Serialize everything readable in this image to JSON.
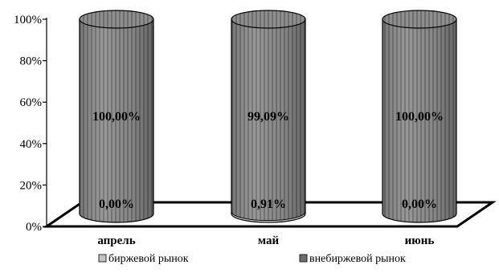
{
  "chart_data": {
    "type": "bar",
    "stacked": true,
    "percent": true,
    "shape": "cylinder",
    "categories": [
      "апрель",
      "май",
      "июнь"
    ],
    "series": [
      {
        "name": "биржевой рынок",
        "values": [
          0.0,
          0.91,
          0.0
        ],
        "labels": [
          "0,00%",
          "0,91%",
          "0,00%"
        ],
        "color": "#c4c4c4"
      },
      {
        "name": "внебиржевой рынок",
        "values": [
          100.0,
          99.09,
          100.0
        ],
        "labels": [
          "100,00%",
          "99,09%",
          "100,00%"
        ],
        "color": "#8c8c8c"
      }
    ],
    "ylim": [
      0,
      100
    ],
    "yticks": [
      "0%",
      "20%",
      "40%",
      "60%",
      "80%",
      "100%"
    ],
    "legend_position": "bottom",
    "grid": false
  }
}
